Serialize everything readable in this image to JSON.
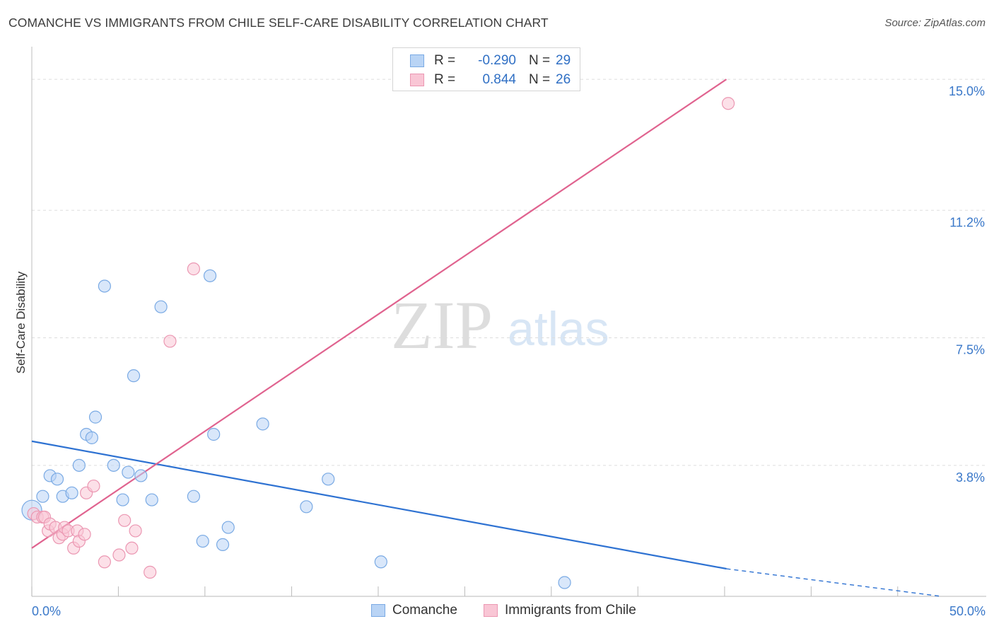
{
  "title": "COMANCHE VS IMMIGRANTS FROM CHILE SELF-CARE DISABILITY CORRELATION CHART",
  "source": "Source: ZipAtlas.com",
  "watermark": {
    "part1": "ZIP",
    "part2": "atlas"
  },
  "legend": {
    "rows": [
      {
        "r_label": "R =",
        "r_value": "-0.290",
        "n_label": "N =",
        "n_value": "29"
      },
      {
        "r_label": "R =",
        "r_value": "0.844",
        "n_label": "N =",
        "n_value": "26"
      }
    ]
  },
  "colors": {
    "comanche_fill": "#b9d4f5",
    "comanche_stroke": "#7aaae4",
    "comanche_line": "#2e72d2",
    "chile_fill": "#f9c6d5",
    "chile_stroke": "#eb97b2",
    "chile_line": "#e0638f",
    "grid": "#dddddd",
    "tick_label": "#3a78c9"
  },
  "chart_data": {
    "type": "scatter",
    "title": "COMANCHE VS IMMIGRANTS FROM CHILE SELF-CARE DISABILITY CORRELATION CHART",
    "xlabel": "",
    "ylabel": "Self-Care Disability",
    "xlim": [
      0,
      50
    ],
    "ylim": [
      0,
      15.7
    ],
    "x_tick_labels": [
      {
        "value": 0,
        "label": "0.0%"
      },
      {
        "value": 50,
        "label": "50.0%"
      }
    ],
    "x_minor_ticks": [
      0,
      4.76,
      9.52,
      14.29,
      19.05,
      23.81,
      28.57,
      33.33,
      38.1,
      42.86,
      47.62
    ],
    "y_ticks": [
      {
        "value": 3.8,
        "label": "3.8%"
      },
      {
        "value": 7.5,
        "label": "7.5%"
      },
      {
        "value": 11.2,
        "label": "11.2%"
      },
      {
        "value": 15.0,
        "label": "15.0%"
      }
    ],
    "grid": true,
    "legend_position": "top-center",
    "series": [
      {
        "name": "Comanche",
        "r": -0.29,
        "n": 29,
        "points": [
          {
            "x": 0.0,
            "y": 2.5
          },
          {
            "x": 0.6,
            "y": 2.9
          },
          {
            "x": 1.0,
            "y": 3.5
          },
          {
            "x": 1.4,
            "y": 3.4
          },
          {
            "x": 1.7,
            "y": 2.9
          },
          {
            "x": 2.2,
            "y": 3.0
          },
          {
            "x": 2.6,
            "y": 3.8
          },
          {
            "x": 3.0,
            "y": 4.7
          },
          {
            "x": 3.3,
            "y": 4.6
          },
          {
            "x": 3.5,
            "y": 5.2
          },
          {
            "x": 4.0,
            "y": 9.0
          },
          {
            "x": 4.5,
            "y": 3.8
          },
          {
            "x": 5.0,
            "y": 2.8
          },
          {
            "x": 5.3,
            "y": 3.6
          },
          {
            "x": 5.6,
            "y": 6.4
          },
          {
            "x": 6.0,
            "y": 3.5
          },
          {
            "x": 6.6,
            "y": 2.8
          },
          {
            "x": 7.1,
            "y": 8.4
          },
          {
            "x": 8.9,
            "y": 2.9
          },
          {
            "x": 9.4,
            "y": 1.6
          },
          {
            "x": 9.8,
            "y": 9.3
          },
          {
            "x": 10.0,
            "y": 4.7
          },
          {
            "x": 10.5,
            "y": 1.5
          },
          {
            "x": 10.8,
            "y": 2.0
          },
          {
            "x": 12.7,
            "y": 5.0
          },
          {
            "x": 15.1,
            "y": 2.6
          },
          {
            "x": 16.3,
            "y": 3.4
          },
          {
            "x": 19.2,
            "y": 1.0
          },
          {
            "x": 29.3,
            "y": 0.4
          }
        ],
        "trend": {
          "x0": 0,
          "y0": 4.5,
          "x1": 38.2,
          "y1": 0.8,
          "dashed_to_x": 50,
          "dashed_to_y": 0.0
        }
      },
      {
        "name": "Immigrants from Chile",
        "r": 0.844,
        "n": 26,
        "points": [
          {
            "x": 0.1,
            "y": 2.4
          },
          {
            "x": 0.3,
            "y": 2.3
          },
          {
            "x": 0.6,
            "y": 2.3
          },
          {
            "x": 0.7,
            "y": 2.3
          },
          {
            "x": 0.9,
            "y": 1.9
          },
          {
            "x": 1.0,
            "y": 2.1
          },
          {
            "x": 1.3,
            "y": 2.0
          },
          {
            "x": 1.5,
            "y": 1.7
          },
          {
            "x": 1.7,
            "y": 1.8
          },
          {
            "x": 1.8,
            "y": 2.0
          },
          {
            "x": 2.0,
            "y": 1.9
          },
          {
            "x": 2.3,
            "y": 1.4
          },
          {
            "x": 2.5,
            "y": 1.9
          },
          {
            "x": 2.6,
            "y": 1.6
          },
          {
            "x": 2.9,
            "y": 1.8
          },
          {
            "x": 3.0,
            "y": 3.0
          },
          {
            "x": 3.4,
            "y": 3.2
          },
          {
            "x": 4.0,
            "y": 1.0
          },
          {
            "x": 4.8,
            "y": 1.2
          },
          {
            "x": 5.1,
            "y": 2.2
          },
          {
            "x": 5.5,
            "y": 1.4
          },
          {
            "x": 5.7,
            "y": 1.9
          },
          {
            "x": 6.5,
            "y": 0.7
          },
          {
            "x": 7.6,
            "y": 7.4
          },
          {
            "x": 8.9,
            "y": 9.5
          },
          {
            "x": 38.3,
            "y": 14.3
          }
        ],
        "trend": {
          "x0": 0,
          "y0": 1.4,
          "x1": 38.2,
          "y1": 15.0
        }
      }
    ]
  }
}
